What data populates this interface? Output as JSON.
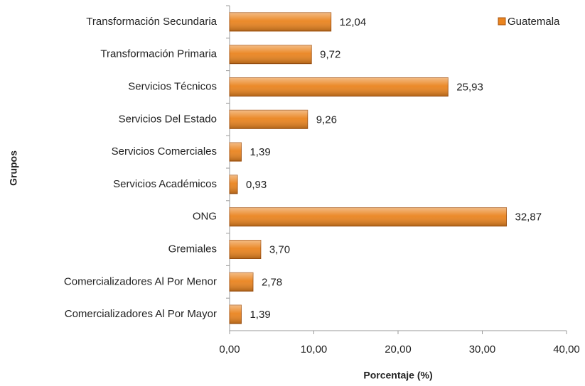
{
  "chart_data": {
    "type": "bar",
    "orientation": "horizontal",
    "x_label": "Porcentaje (%)",
    "y_label": "Grupos",
    "categories": [
      "Transformación Secundaria",
      "Transformación Primaria",
      "Servicios Técnicos",
      "Servicios Del Estado",
      "Servicios Comerciales",
      "Servicios Académicos",
      "ONG",
      "Gremiales",
      "Comercializadores Al Por Menor",
      "Comercializadores Al Por Mayor"
    ],
    "series": [
      {
        "name": "Guatemala",
        "color": "#ea841f",
        "values": [
          12.04,
          9.72,
          25.93,
          9.26,
          1.39,
          0.93,
          32.87,
          3.7,
          2.78,
          1.39
        ],
        "value_labels": [
          "12,04",
          "9,72",
          "25,93",
          "9,26",
          "1,39",
          "0,93",
          "32,87",
          "3,70",
          "2,78",
          "1,39"
        ]
      }
    ],
    "xlim": [
      0,
      40
    ],
    "xticks": [
      {
        "value": 0,
        "label": "0,00"
      },
      {
        "value": 10,
        "label": "10,00"
      },
      {
        "value": 20,
        "label": "20,00"
      },
      {
        "value": 30,
        "label": "30,00"
      },
      {
        "value": 40,
        "label": "40,00"
      }
    ],
    "legend": "top-right",
    "grid": false
  }
}
